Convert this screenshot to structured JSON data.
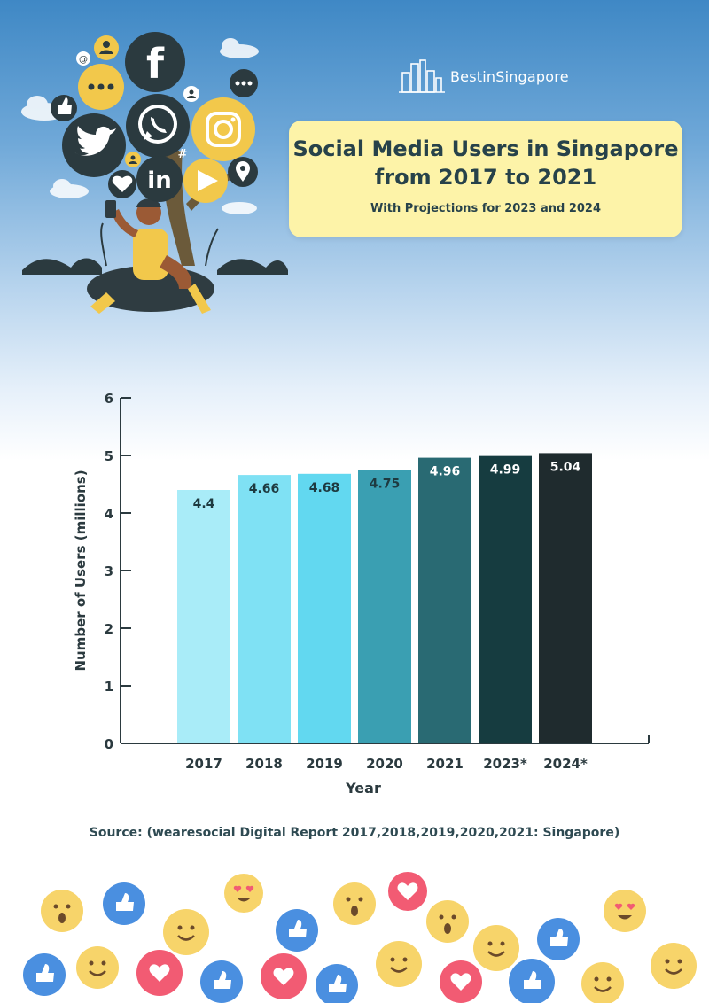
{
  "brand": {
    "name": "BestinSingapore"
  },
  "header": {
    "title_line1": "Social Media Users in Singapore",
    "title_line2": "from 2017 to 2021",
    "subtitle": "With Projections for 2023 and 2024"
  },
  "icons": [
    "facebook-icon",
    "whatsapp-icon",
    "instagram-icon",
    "twitter-icon",
    "linkedin-icon",
    "youtube-play-icon",
    "location-pin-icon",
    "heart-icon",
    "thumbs-up-icon",
    "chat-bubble-icon",
    "person-icon",
    "hashtag-icon",
    "at-sign-icon"
  ],
  "chart_data": {
    "type": "bar",
    "categories": [
      "2017",
      "2018",
      "2019",
      "2020",
      "2021",
      "2023*",
      "2024*"
    ],
    "values": [
      4.4,
      4.66,
      4.68,
      4.75,
      4.96,
      4.99,
      5.04
    ],
    "value_labels": [
      "4.4",
      "4.66",
      "4.68",
      "4.75",
      "4.96",
      "4.99",
      "5.04"
    ],
    "bar_colors": [
      "#a9ecf8",
      "#7fe1f4",
      "#62d8f0",
      "#3a9fb2",
      "#296a73",
      "#163c40",
      "#1f2b2e"
    ],
    "label_colors": [
      "#1e3a40",
      "#1e3a40",
      "#1e3a40",
      "#1e3a40",
      "#ffffff",
      "#ffffff",
      "#ffffff"
    ],
    "xlabel": "Year",
    "ylabel": "Number of Users (millions)",
    "ylim": [
      0,
      6
    ],
    "yticks": [
      "0",
      "1",
      "2",
      "3",
      "4",
      "5",
      "6"
    ],
    "grid": false
  },
  "source": "Source: (wearesocial Digital Report 2017,2018,2019,2020,2021: Singapore)"
}
